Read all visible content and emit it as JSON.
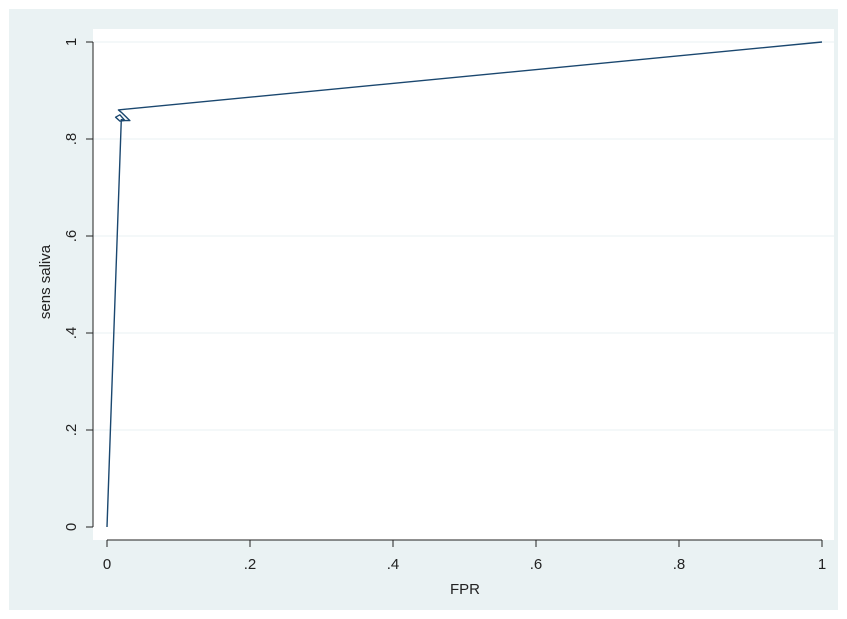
{
  "chart_data": {
    "type": "line",
    "title": "",
    "xlabel": "FPR",
    "ylabel": "sens saliva",
    "xlim": [
      0,
      1
    ],
    "ylim": [
      0,
      1
    ],
    "x_ticks": [
      0,
      0.2,
      0.4,
      0.6,
      0.8,
      1
    ],
    "x_tick_labels": [
      "0",
      ".2",
      ".4",
      ".6",
      ".8",
      "1"
    ],
    "y_ticks": [
      0,
      0.2,
      0.4,
      0.6,
      0.8,
      1
    ],
    "y_tick_labels": [
      "0",
      ".2",
      ".4",
      ".6",
      ".8",
      "1"
    ],
    "grid": true,
    "series": [
      {
        "x": [
          0,
          0.02,
          0.025,
          0.018,
          0.012,
          0.018,
          0.025,
          0.032,
          0.02,
          0.016,
          1
        ],
        "y": [
          0,
          0.84,
          0.838,
          0.837,
          0.845,
          0.85,
          0.838,
          0.838,
          0.855,
          0.86,
          1
        ]
      }
    ]
  },
  "colors": {
    "page_background": "#ffffff",
    "outer_background": "#eaf2f3",
    "plot_background": "#ffffff",
    "grid": "#eaf2f3",
    "line": "#1a476f",
    "axis": "#222222"
  }
}
